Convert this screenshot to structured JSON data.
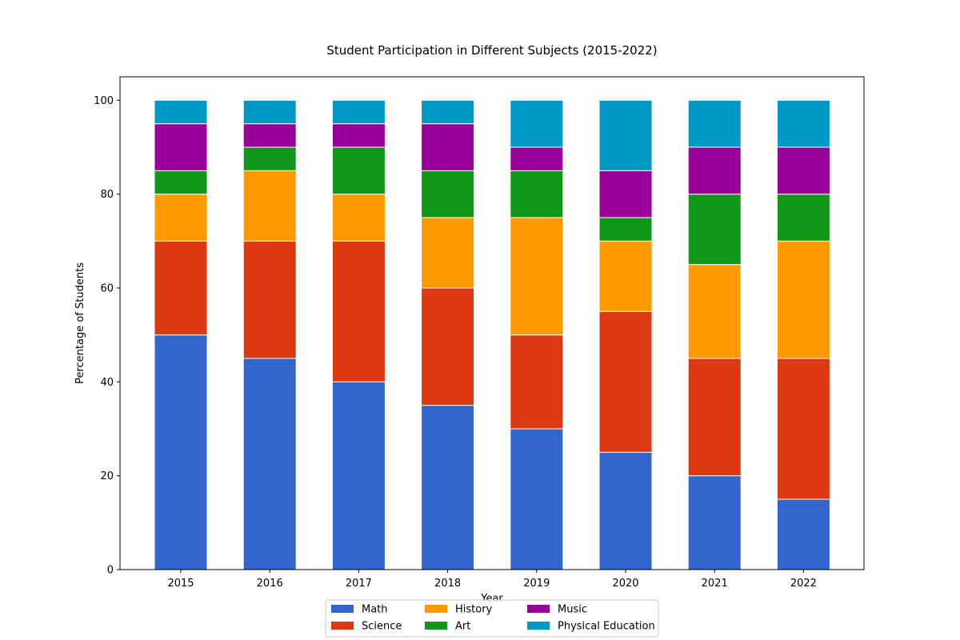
{
  "chart_data": {
    "type": "bar",
    "stacked": true,
    "title": "Student Participation in Different Subjects (2015-2022)",
    "xlabel": "Year",
    "ylabel": "Percentage of Students",
    "ylim": [
      0,
      105
    ],
    "yticks": [
      0,
      20,
      40,
      60,
      80,
      100
    ],
    "categories": [
      "2015",
      "2016",
      "2017",
      "2018",
      "2019",
      "2020",
      "2021",
      "2022"
    ],
    "grid": false,
    "legend_placement": "bottom-center",
    "series": [
      {
        "name": "Math",
        "color": "#3366cc",
        "values": [
          50,
          45,
          40,
          35,
          30,
          25,
          20,
          15
        ]
      },
      {
        "name": "Science",
        "color": "#dc3912",
        "values": [
          20,
          25,
          30,
          25,
          20,
          30,
          25,
          30
        ]
      },
      {
        "name": "History",
        "color": "#ff9900",
        "values": [
          10,
          15,
          10,
          15,
          25,
          15,
          20,
          25
        ]
      },
      {
        "name": "Art",
        "color": "#109618",
        "values": [
          5,
          5,
          10,
          10,
          10,
          5,
          15,
          10
        ]
      },
      {
        "name": "Music",
        "color": "#990099",
        "values": [
          10,
          5,
          5,
          10,
          5,
          10,
          10,
          10
        ]
      },
      {
        "name": "Physical Education",
        "color": "#0099c6",
        "values": [
          5,
          5,
          5,
          5,
          10,
          15,
          10,
          10
        ]
      }
    ]
  }
}
